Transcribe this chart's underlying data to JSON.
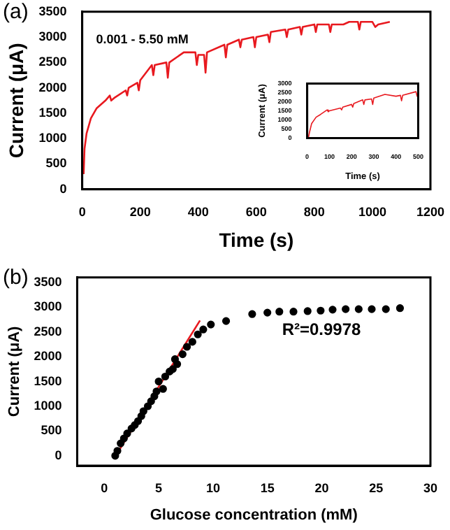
{
  "chart_data": [
    {
      "type": "line",
      "title": "(a)",
      "xlabel": "Time (s)",
      "ylabel": "Current (μA)",
      "annotations": [
        "0.001 - 5.50 mM"
      ],
      "xlim": [
        0,
        1200
      ],
      "xticks": [
        0,
        200,
        400,
        600,
        800,
        1000,
        1200
      ],
      "ylim": [
        0,
        3500
      ],
      "yticks": [
        0,
        500,
        1000,
        1500,
        2000,
        2500,
        3000,
        3500
      ],
      "grid": false,
      "legend": false,
      "marker": "none",
      "series": [
        {
          "color": "#e8191f",
          "x": [
            5,
            8,
            15,
            30,
            50,
            80,
            95,
            100,
            110,
            150,
            155,
            160,
            190,
            195,
            200,
            240,
            245,
            250,
            290,
            295,
            300,
            350,
            390,
            395,
            400,
            420,
            425,
            430,
            490,
            495,
            500,
            540,
            545,
            550,
            590,
            595,
            600,
            640,
            645,
            650,
            700,
            705,
            710,
            750,
            755,
            760,
            800,
            805,
            810,
            850,
            855,
            860,
            900,
            920,
            950,
            955,
            960,
            1000,
            1010,
            1020,
            1060
          ],
          "values": [
            300,
            800,
            1100,
            1400,
            1600,
            1750,
            1850,
            1750,
            1800,
            1950,
            1850,
            2000,
            2100,
            1950,
            2150,
            2450,
            2250,
            2450,
            2500,
            2200,
            2500,
            2700,
            2700,
            2450,
            2650,
            2650,
            2300,
            2700,
            2850,
            2600,
            2850,
            2950,
            2800,
            2950,
            3000,
            2800,
            3000,
            3050,
            2900,
            3100,
            3150,
            3000,
            3150,
            3200,
            3050,
            3200,
            3250,
            3100,
            3250,
            3250,
            3100,
            3250,
            3250,
            3300,
            3300,
            3150,
            3300,
            3300,
            3200,
            3250,
            3300
          ]
        }
      ]
    },
    {
      "type": "line",
      "xlabel": "Time (s)",
      "ylabel": "Current (μA)",
      "xlim": [
        0,
        500
      ],
      "xticks": [
        0,
        100,
        200,
        300,
        400,
        500
      ],
      "ylim": [
        0,
        3000
      ],
      "yticks": [
        0,
        500,
        1000,
        1500,
        2000,
        2500,
        3000
      ],
      "grid": false,
      "legend": false,
      "marker": "none",
      "series": [
        {
          "color": "#e8191f",
          "x": [
            5,
            10,
            20,
            40,
            60,
            90,
            95,
            100,
            150,
            155,
            160,
            200,
            205,
            210,
            250,
            255,
            260,
            290,
            295,
            300,
            350,
            400,
            420,
            425,
            430,
            490,
            495,
            500
          ],
          "values": [
            0,
            300,
            800,
            1150,
            1300,
            1550,
            1450,
            1500,
            1650,
            1550,
            1700,
            1850,
            1700,
            1900,
            2100,
            1850,
            2100,
            2150,
            1850,
            2200,
            2400,
            2300,
            2350,
            2050,
            2350,
            2550,
            2300,
            2500
          ]
        }
      ]
    },
    {
      "type": "scatter",
      "title": "(b)",
      "xlabel": "Glucose concentration (mM)",
      "ylabel": "Current (μA)",
      "annotations": [
        "R²=0.9978"
      ],
      "xlim": [
        -2.5,
        30
      ],
      "xticks": [
        0,
        5,
        10,
        15,
        20,
        25,
        30
      ],
      "ylim": [
        -200,
        3600
      ],
      "yticks": [
        0,
        500,
        1000,
        1500,
        2000,
        2500,
        3000,
        3500
      ],
      "grid": false,
      "legend": false,
      "series": [
        {
          "color": "#000000",
          "marker": "circle",
          "x": [
            1.0,
            1.2,
            1.5,
            1.8,
            2.1,
            2.5,
            2.8,
            3.1,
            3.4,
            3.6,
            4.0,
            4.3,
            4.6,
            4.8,
            5.0,
            5.4,
            5.6,
            6.0,
            6.3,
            6.5,
            6.7,
            7.2,
            7.6,
            8.1,
            8.6,
            9.1,
            9.8,
            11.2,
            13.6,
            15.0,
            16.1,
            17.4,
            18.7,
            19.9,
            21.0,
            22.2,
            23.4,
            24.6,
            25.9,
            27.2
          ],
          "values": [
            0,
            100,
            250,
            350,
            450,
            550,
            620,
            700,
            800,
            900,
            1000,
            1100,
            1200,
            1300,
            1500,
            1350,
            1600,
            1700,
            1750,
            1950,
            1850,
            2050,
            2200,
            2300,
            2450,
            2550,
            2650,
            2720,
            2860,
            2890,
            2910,
            2910,
            2920,
            2930,
            2950,
            2960,
            2960,
            2960,
            2960,
            2980
          ]
        },
        {
          "type": "line",
          "marker": "none",
          "color": "#e8191f",
          "x": [
            0.9,
            8.8
          ],
          "values": [
            -50,
            2730
          ]
        }
      ]
    }
  ]
}
